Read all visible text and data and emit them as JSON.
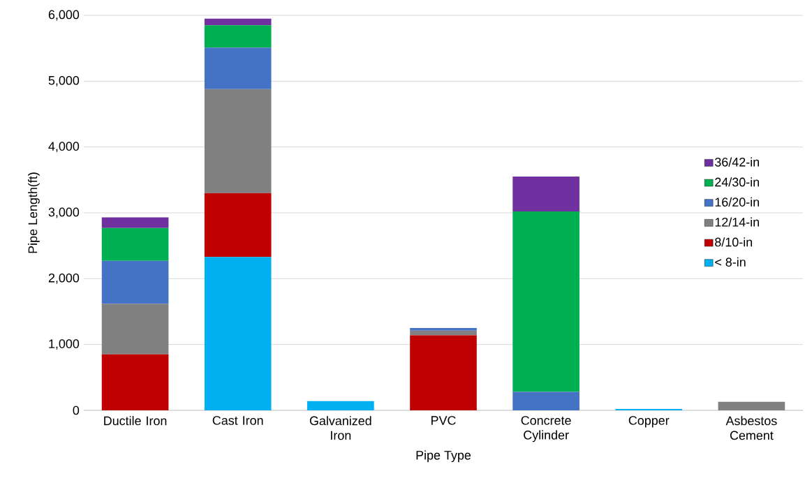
{
  "chart_data": {
    "type": "bar",
    "stacked": true,
    "xlabel": "Pipe Type",
    "ylabel": "Pipe Length(ft)",
    "categories": [
      "Ductile Iron",
      "Cast Iron",
      "Galvanized Iron",
      "PVC",
      "Concrete Cylinder",
      "Copper",
      "Asbestos Cement"
    ],
    "series": [
      {
        "name": "< 8-in",
        "color": "#00b0f0",
        "values": [
          0,
          2330,
          140,
          0,
          0,
          20,
          0
        ]
      },
      {
        "name": "8/10-in",
        "color": "#c00000",
        "values": [
          850,
          970,
          0,
          1140,
          0,
          0,
          0
        ]
      },
      {
        "name": "12/14-in",
        "color": "#808080",
        "values": [
          770,
          1580,
          0,
          70,
          0,
          0,
          130
        ]
      },
      {
        "name": "16/20-in",
        "color": "#4472c4",
        "values": [
          650,
          630,
          0,
          40,
          280,
          0,
          0
        ]
      },
      {
        "name": "24/30-in",
        "color": "#00b050",
        "values": [
          500,
          340,
          0,
          0,
          2740,
          0,
          0
        ]
      },
      {
        "name": "36/42-in",
        "color": "#7030a0",
        "values": [
          160,
          100,
          0,
          0,
          530,
          0,
          0
        ]
      }
    ],
    "ylim": [
      0,
      6000
    ],
    "yticks": [
      0,
      {
        "value": 1000,
        "label": "1,000"
      },
      {
        "value": 2000,
        "label": "2,000"
      },
      {
        "value": 3000,
        "label": "3,000"
      },
      {
        "value": 4000,
        "label": "4,000"
      },
      {
        "value": 5000,
        "label": "5,000"
      },
      {
        "value": 6000,
        "label": "6,000"
      }
    ],
    "grid": "y",
    "legend": "right"
  }
}
